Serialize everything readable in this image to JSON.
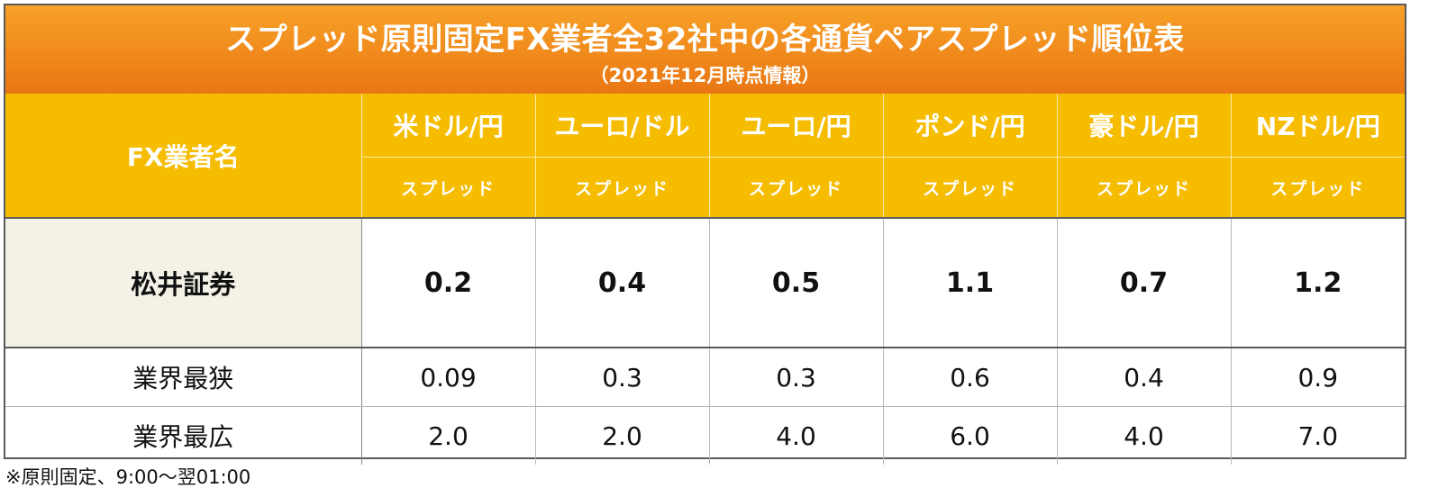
{
  "title": "スプレッド原則固定FX業者全32社中の各通貨ペアスプレッド順位表",
  "subtitle": "（2021年12月時点情報）",
  "header": {
    "name_col": "FX業者名",
    "pairs": [
      "米ドル/円",
      "ユーロ/ドル",
      "ユーロ/円",
      "ポンド/円",
      "豪ドル/円",
      "NZドル/円"
    ],
    "spread_label": "スプレッド"
  },
  "rows": [
    {
      "name": "松井証券",
      "values": [
        "0.2",
        "0.4",
        "0.5",
        "1.1",
        "0.7",
        "1.2"
      ]
    },
    {
      "name": "業界最狭",
      "values": [
        "0.09",
        "0.3",
        "0.3",
        "0.6",
        "0.4",
        "0.9"
      ]
    },
    {
      "name": "業界最広",
      "values": [
        "2.0",
        "2.0",
        "4.0",
        "6.0",
        "4.0",
        "7.0"
      ]
    }
  ],
  "note": "※原則固定、9:00〜翌01:00",
  "colors": {
    "title_orange": "#f08a1c",
    "header_yellow": "#f5bc00",
    "name_cell_bg": "#f4f2e6",
    "border": "#5a5a5a"
  }
}
